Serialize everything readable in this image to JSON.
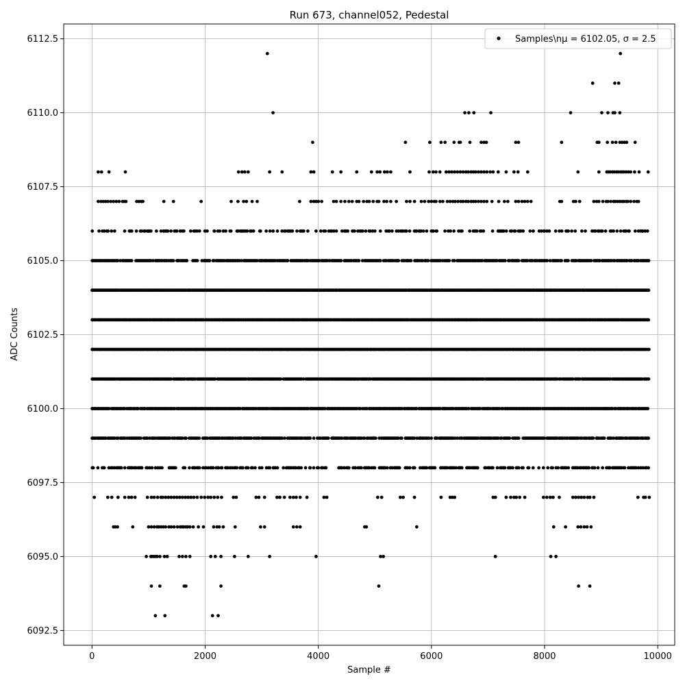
{
  "chart_data": {
    "type": "scatter",
    "title": "Run 673, channel052, Pedestal",
    "xlabel": "Sample #",
    "ylabel": "ADC Counts",
    "xlim": [
      -500,
      10300
    ],
    "ylim": [
      6092,
      6113
    ],
    "xticks": [
      "0",
      "2000",
      "4000",
      "6000",
      "8000",
      "10000"
    ],
    "yticks": [
      "6092.5",
      "6095.0",
      "6097.5",
      "6100.0",
      "6102.5",
      "6105.0",
      "6107.5",
      "6110.0",
      "6112.5"
    ],
    "grid": true,
    "legend": {
      "placement": "top-right",
      "label": "Samples\\nμ = 6102.05, σ = 2.5"
    },
    "marker_color": "#000000",
    "n_samples": 9850,
    "levels": [
      {
        "y": 6093,
        "x": [
          1120,
          1290,
          2130,
          2230
        ]
      },
      {
        "y": 6094,
        "x": [
          1050,
          1200,
          1630,
          1660,
          2280,
          5070,
          8600,
          8800
        ]
      },
      {
        "y": 6095,
        "x": [
          960,
          1040,
          1060,
          1090,
          1120,
          1150,
          1200,
          1280,
          1330,
          1540,
          1600,
          1660,
          1730,
          2100,
          2180,
          2280,
          2520,
          2760,
          3140,
          3960,
          5100,
          5150,
          7130,
          8110,
          8200
        ]
      },
      {
        "y": 6096,
        "x": [
          380,
          410,
          450,
          720,
          1000,
          1050,
          1100,
          1150,
          1180,
          1220,
          1260,
          1300,
          1360,
          1400,
          1450,
          1510,
          1560,
          1590,
          1620,
          1660,
          1690,
          1730,
          1790,
          1880,
          1970,
          2150,
          2210,
          2250,
          2320,
          2530,
          2980,
          3050,
          3560,
          3620,
          3680,
          4820,
          4850,
          5740,
          8160,
          8370,
          8590,
          8640,
          8700,
          8750,
          8820
        ]
      },
      {
        "y": 6097,
        "x": [
          40,
          280,
          350,
          460,
          580,
          650,
          700,
          760,
          980,
          1050,
          1100,
          1160,
          1220,
          1250,
          1300,
          1350,
          1400,
          1450,
          1500,
          1550,
          1600,
          1650,
          1700,
          1750,
          1800,
          1860,
          1930,
          1990,
          2050,
          2100,
          2160,
          2220,
          2290,
          2500,
          2550,
          2900,
          2950,
          3050,
          3270,
          3320,
          3400,
          3500,
          3560,
          3610,
          3680,
          3800,
          4100,
          4150,
          5050,
          5120,
          5450,
          5500,
          5700,
          6170,
          6330,
          6370,
          6410,
          7090,
          7130,
          7320,
          7400,
          7460,
          7500,
          7560,
          7650,
          7980,
          8040,
          8100,
          8150,
          8260,
          8500,
          8550,
          8600,
          8650,
          8700,
          8760,
          8800,
          8870,
          9650,
          9750,
          9780,
          9850
        ]
      },
      {
        "y": 6098,
        "x": [
          5,
          880,
          3850,
          4650,
          5180,
          5680,
          6260,
          6810,
          7060
        ]
      },
      {
        "y": 6099,
        "x": [
          5,
          6290,
          6530,
          6660,
          9310
        ]
      },
      {
        "y": 6100,
        "x": [
          5,
          6000,
          6230,
          6620,
          9070
        ]
      },
      {
        "y": 6101,
        "x": [
          5,
          6580,
          9100
        ]
      },
      {
        "y": 6102,
        "x": [
          5
        ]
      },
      {
        "y": 6103,
        "x": [
          5
        ]
      },
      {
        "y": 6104,
        "x": [
          5
        ]
      },
      {
        "y": 6105,
        "x": [
          5,
          3450,
          3610,
          4570,
          5400,
          5580
        ]
      },
      {
        "y": 6106,
        "x": [
          5,
          1000,
          1300,
          1560,
          2000,
          2160,
          2320,
          3200,
          3700,
          4320,
          4420,
          5500,
          7250,
          7620,
          7800,
          8000
        ]
      },
      {
        "y": 6107,
        "x": [
          110,
          160,
          200,
          240,
          280,
          330,
          380,
          430,
          480,
          540,
          570,
          600,
          790,
          830,
          870,
          900,
          1270,
          1440,
          1930,
          2460,
          2580,
          2680,
          2730,
          2830,
          2920,
          3670,
          3870,
          3920,
          3960,
          4000,
          4060,
          4270,
          4320,
          4400,
          4470,
          4540,
          4600,
          4680,
          4720,
          4800,
          4860,
          4900,
          4970,
          5040,
          5070,
          5160,
          5210,
          5280,
          5380,
          5560,
          5620,
          5700,
          5820,
          5880,
          5950,
          6000,
          6050,
          6080,
          6150,
          6200,
          6280,
          6330,
          6380,
          6420,
          6470,
          6520,
          6560,
          6610,
          6650,
          6700,
          6740,
          6780,
          6830,
          6880,
          6930,
          6980,
          7070,
          7190,
          7290,
          7350,
          7490,
          7540,
          7600,
          7650,
          7700,
          7760,
          8270,
          8300,
          8510,
          8550,
          8620,
          8870,
          8920,
          8960,
          9030,
          9090,
          9120,
          9170,
          9220,
          9250,
          9290,
          9330,
          9370,
          9400,
          9440,
          9470,
          9520,
          9580,
          9630,
          9660
        ]
      },
      {
        "y": 6108,
        "x": [
          110,
          170,
          300,
          590,
          2590,
          2650,
          2700,
          2760,
          3140,
          3360,
          3870,
          3920,
          4250,
          4400,
          4680,
          4940,
          5040,
          5090,
          5170,
          5220,
          5280,
          5620,
          5960,
          6030,
          6080,
          6150,
          6260,
          6310,
          6360,
          6410,
          6460,
          6510,
          6560,
          6610,
          6650,
          6700,
          6740,
          6780,
          6830,
          6880,
          6930,
          6980,
          7040,
          7090,
          7180,
          7320,
          7460,
          7530,
          7700,
          8590,
          8960,
          9100,
          9130,
          9160,
          9200,
          9230,
          9270,
          9300,
          9340,
          9370,
          9400,
          9440,
          9480,
          9520,
          9590,
          9670,
          9830
        ]
      },
      {
        "y": 6109,
        "x": [
          3900,
          5540,
          5970,
          6170,
          6240,
          6400,
          6490,
          6510,
          6680,
          6880,
          6930,
          6970,
          7490,
          7540,
          8300,
          8930,
          8960,
          9110,
          9200,
          9260,
          9330,
          9370,
          9410,
          9450,
          9600
        ]
      },
      {
        "y": 6110,
        "x": [
          3200,
          6590,
          6660,
          6750,
          7050,
          8460,
          9010,
          9120,
          9210,
          9240,
          9330
        ]
      },
      {
        "y": 6111,
        "x": [
          8850,
          9240,
          9310
        ]
      },
      {
        "y": 6112,
        "x": [
          3100,
          9340
        ]
      }
    ]
  }
}
